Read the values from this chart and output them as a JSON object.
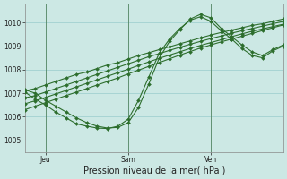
{
  "bg_color": "#cce8e4",
  "grid_color": "#99cccc",
  "line_color": "#2d6e2d",
  "xlabel": "Pression niveau de la mer( hPa )",
  "ylabel_ticks": [
    1005,
    1006,
    1007,
    1008,
    1009,
    1010
  ],
  "ylim": [
    1004.5,
    1010.8
  ],
  "xlim": [
    0,
    100
  ],
  "day_labels": [
    "Jeu",
    "Sam",
    "Ven"
  ],
  "day_positions": [
    8,
    40,
    72
  ],
  "vline_positions": [
    8,
    40,
    72
  ],
  "figsize": [
    3.2,
    2.0
  ],
  "dpi": 100,
  "lines": [
    {
      "x": [
        0,
        4,
        8,
        12,
        16,
        20,
        24,
        28,
        32,
        36,
        40,
        44,
        48,
        52,
        56,
        60,
        64,
        68,
        72,
        76,
        80,
        84,
        88,
        92,
        96,
        100
      ],
      "y": [
        1007.1,
        1007.2,
        1007.35,
        1007.5,
        1007.65,
        1007.8,
        1007.9,
        1008.05,
        1008.2,
        1008.3,
        1008.45,
        1008.6,
        1008.72,
        1008.85,
        1008.97,
        1009.1,
        1009.22,
        1009.35,
        1009.47,
        1009.58,
        1009.68,
        1009.78,
        1009.88,
        1009.95,
        1010.05,
        1010.15
      ]
    },
    {
      "x": [
        0,
        4,
        8,
        12,
        16,
        20,
        24,
        28,
        32,
        36,
        40,
        44,
        48,
        52,
        56,
        60,
        64,
        68,
        72,
        76,
        80,
        84,
        88,
        92,
        96,
        100
      ],
      "y": [
        1006.8,
        1006.9,
        1007.05,
        1007.2,
        1007.35,
        1007.5,
        1007.65,
        1007.8,
        1007.95,
        1008.1,
        1008.25,
        1008.4,
        1008.55,
        1008.68,
        1008.82,
        1008.95,
        1009.08,
        1009.2,
        1009.32,
        1009.43,
        1009.55,
        1009.65,
        1009.75,
        1009.85,
        1009.95,
        1010.05
      ]
    },
    {
      "x": [
        0,
        4,
        8,
        12,
        16,
        20,
        24,
        28,
        32,
        36,
        40,
        44,
        48,
        52,
        56,
        60,
        64,
        68,
        72,
        76,
        80,
        84,
        88,
        92,
        96,
        100
      ],
      "y": [
        1006.55,
        1006.68,
        1006.82,
        1006.97,
        1007.12,
        1007.27,
        1007.42,
        1007.57,
        1007.72,
        1007.87,
        1008.02,
        1008.18,
        1008.33,
        1008.48,
        1008.62,
        1008.76,
        1008.9,
        1009.03,
        1009.15,
        1009.27,
        1009.4,
        1009.52,
        1009.63,
        1009.73,
        1009.83,
        1009.93
      ]
    },
    {
      "x": [
        0,
        4,
        8,
        12,
        16,
        20,
        24,
        28,
        32,
        36,
        40,
        44,
        48,
        52,
        56,
        60,
        64,
        68,
        72,
        76,
        80,
        84,
        88,
        92,
        96,
        100
      ],
      "y": [
        1006.3,
        1006.45,
        1006.6,
        1006.75,
        1006.9,
        1007.05,
        1007.2,
        1007.35,
        1007.5,
        1007.65,
        1007.82,
        1007.98,
        1008.14,
        1008.3,
        1008.46,
        1008.62,
        1008.77,
        1008.92,
        1009.05,
        1009.18,
        1009.3,
        1009.42,
        1009.54,
        1009.66,
        1009.78,
        1009.9
      ]
    },
    {
      "x": [
        0,
        4,
        8,
        12,
        16,
        20,
        24,
        28,
        32,
        36,
        40,
        44,
        48,
        52,
        56,
        60,
        64,
        68,
        72,
        76,
        80,
        84,
        88,
        92,
        96,
        100
      ],
      "y": [
        1007.15,
        1007.0,
        1006.7,
        1006.45,
        1006.2,
        1005.95,
        1005.75,
        1005.6,
        1005.52,
        1005.55,
        1005.75,
        1006.4,
        1007.4,
        1008.5,
        1009.2,
        1009.7,
        1010.15,
        1010.35,
        1010.2,
        1009.75,
        1009.4,
        1009.05,
        1008.75,
        1008.6,
        1008.85,
        1009.05
      ]
    },
    {
      "x": [
        0,
        4,
        8,
        12,
        16,
        20,
        24,
        28,
        32,
        36,
        40,
        44,
        48,
        52,
        56,
        60,
        64,
        68,
        72,
        76,
        80,
        84,
        88,
        92,
        96,
        100
      ],
      "y": [
        1007.05,
        1006.75,
        1006.5,
        1006.2,
        1005.95,
        1005.7,
        1005.6,
        1005.52,
        1005.5,
        1005.6,
        1005.9,
        1006.7,
        1007.7,
        1008.7,
        1009.3,
        1009.75,
        1010.1,
        1010.25,
        1010.05,
        1009.65,
        1009.3,
        1008.9,
        1008.6,
        1008.5,
        1008.8,
        1009.0
      ]
    }
  ]
}
